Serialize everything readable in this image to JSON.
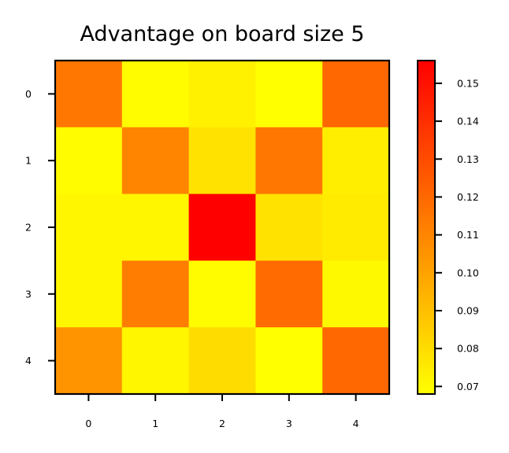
{
  "chart_data": {
    "type": "heatmap",
    "title": "Advantage on board size 5",
    "xlabel": "",
    "ylabel": "",
    "x_categories": [
      "0",
      "1",
      "2",
      "3",
      "4"
    ],
    "y_categories": [
      "0",
      "1",
      "2",
      "3",
      "4"
    ],
    "values": [
      [
        0.115,
        0.069,
        0.073,
        0.068,
        0.12
      ],
      [
        0.069,
        0.11,
        0.078,
        0.115,
        0.074
      ],
      [
        0.071,
        0.071,
        0.156,
        0.078,
        0.075
      ],
      [
        0.071,
        0.113,
        0.069,
        0.119,
        0.07
      ],
      [
        0.105,
        0.071,
        0.08,
        0.068,
        0.12
      ]
    ],
    "colormap": "autumn_r",
    "colors": {
      "low": "#ffff00",
      "high": "#ff0000"
    },
    "vmin": 0.068,
    "vmax": 0.156,
    "colorbar": {
      "ticks": [
        0.07,
        0.08,
        0.09,
        0.1,
        0.11,
        0.12,
        0.13,
        0.14,
        0.15
      ],
      "tick_labels": [
        "0.07",
        "0.08",
        "0.09",
        "0.10",
        "0.11",
        "0.12",
        "0.13",
        "0.14",
        "0.15"
      ]
    },
    "grid": false,
    "colorbar_position": "right"
  }
}
